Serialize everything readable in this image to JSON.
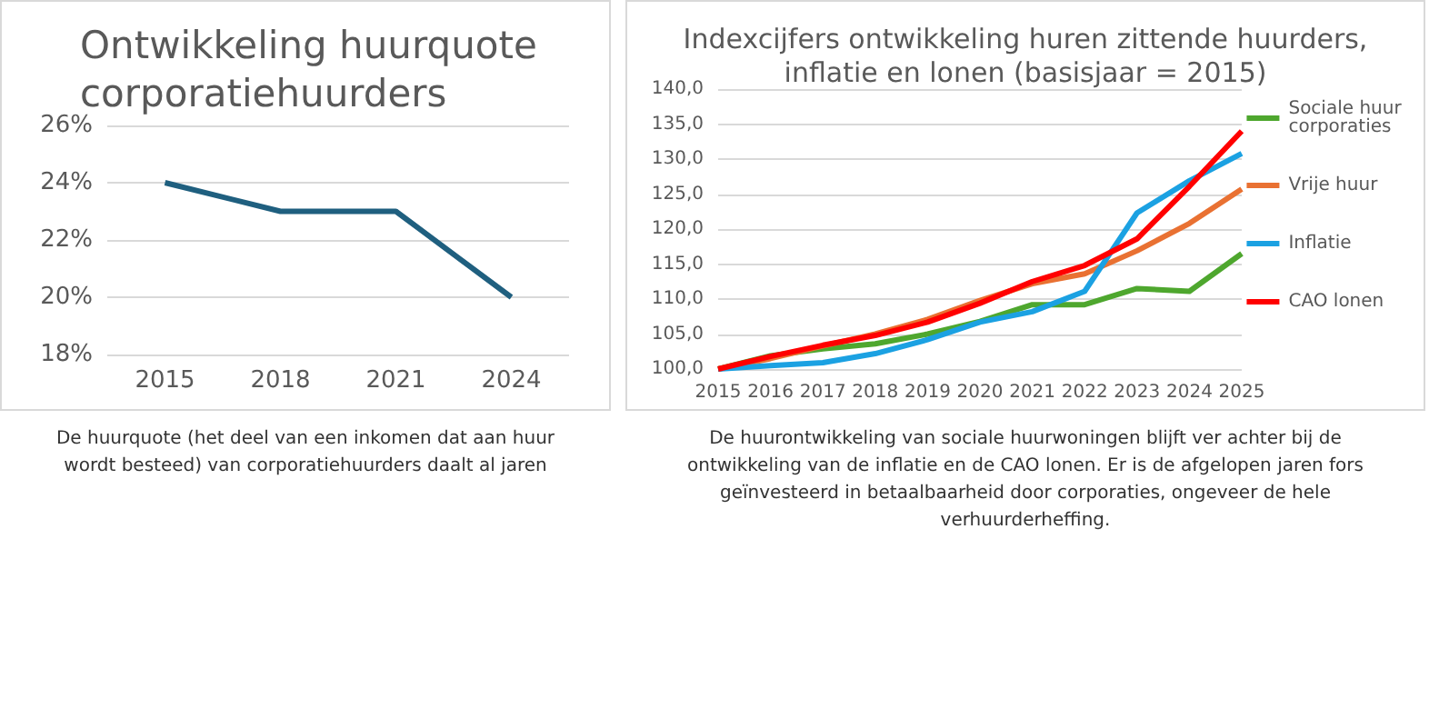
{
  "chart_data": [
    {
      "type": "line",
      "title": "Ontwikkeling huurquote corporatiehuurders",
      "categories": [
        "2015",
        "2018",
        "2021",
        "2024"
      ],
      "series": [
        {
          "color": "#1f5f7f",
          "values": [
            24,
            23,
            23,
            20
          ]
        }
      ],
      "ylim": [
        18,
        26
      ],
      "yticks": [
        {
          "value": 18,
          "label": "18%"
        },
        {
          "value": 20,
          "label": "20%"
        },
        {
          "value": 22,
          "label": "22%"
        },
        {
          "value": 24,
          "label": "24%"
        },
        {
          "value": 26,
          "label": "26%"
        }
      ],
      "grid": "y",
      "legend": false,
      "marker": "none",
      "annotations": [
        "De huurquote (het deel van een inkomen dat aan huur wordt besteed) van corporatiehuurders daalt al jaren"
      ]
    },
    {
      "type": "line",
      "title": "Indexcijfers ontwikkeling huren zittende huurders, inflatie en lonen (basisjaar = 2015)",
      "categories": [
        "2015",
        "2016",
        "2017",
        "2018",
        "2019",
        "2020",
        "2021",
        "2022",
        "2023",
        "2024",
        "2025"
      ],
      "series": [
        {
          "name": "Sociale huur corporaties",
          "color": "#4ea72e",
          "values": [
            100,
            101.9,
            102.9,
            103.6,
            105,
            106.8,
            109.2,
            109.2,
            111.5,
            111.1,
            116.5
          ]
        },
        {
          "name": "Vrije huur",
          "color": "#e97132",
          "values": [
            100,
            101.5,
            103.3,
            105,
            107.1,
            109.8,
            112.2,
            113.6,
            116.9,
            120.8,
            125.7
          ]
        },
        {
          "name": "Inflatie",
          "color": "#1ba1e2",
          "values": [
            100,
            100.5,
            100.9,
            102.2,
            104.2,
            106.7,
            108.2,
            111.1,
            122.3,
            126.9,
            130.8
          ]
        },
        {
          "name": "CAO lonen",
          "color": "#ff0000",
          "values": [
            100,
            101.8,
            103.4,
            104.8,
            106.7,
            109.4,
            112.5,
            114.8,
            118.6,
            126.1,
            134
          ]
        }
      ],
      "ylim": [
        100,
        140
      ],
      "yticks": [
        {
          "value": 100,
          "label": "100,0"
        },
        {
          "value": 105,
          "label": "105,0"
        },
        {
          "value": 110,
          "label": "110,0"
        },
        {
          "value": 115,
          "label": "115,0"
        },
        {
          "value": 120,
          "label": "120,0"
        },
        {
          "value": 125,
          "label": "125,0"
        },
        {
          "value": 130,
          "label": "130,0"
        },
        {
          "value": 135,
          "label": "135,0"
        },
        {
          "value": 140,
          "label": "140,0"
        }
      ],
      "grid": "y",
      "legend": "right",
      "marker": "none",
      "annotations": [
        "De huurontwikkeling van sociale huurwoningen blijft ver achter bij de ontwikkeling van de inflatie en de CAO lonen. Er is de afgelopen jaren fors geïnvesteerd in betaalbaarheid door corporaties, ongeveer de hele verhuurderheffing."
      ]
    }
  ]
}
